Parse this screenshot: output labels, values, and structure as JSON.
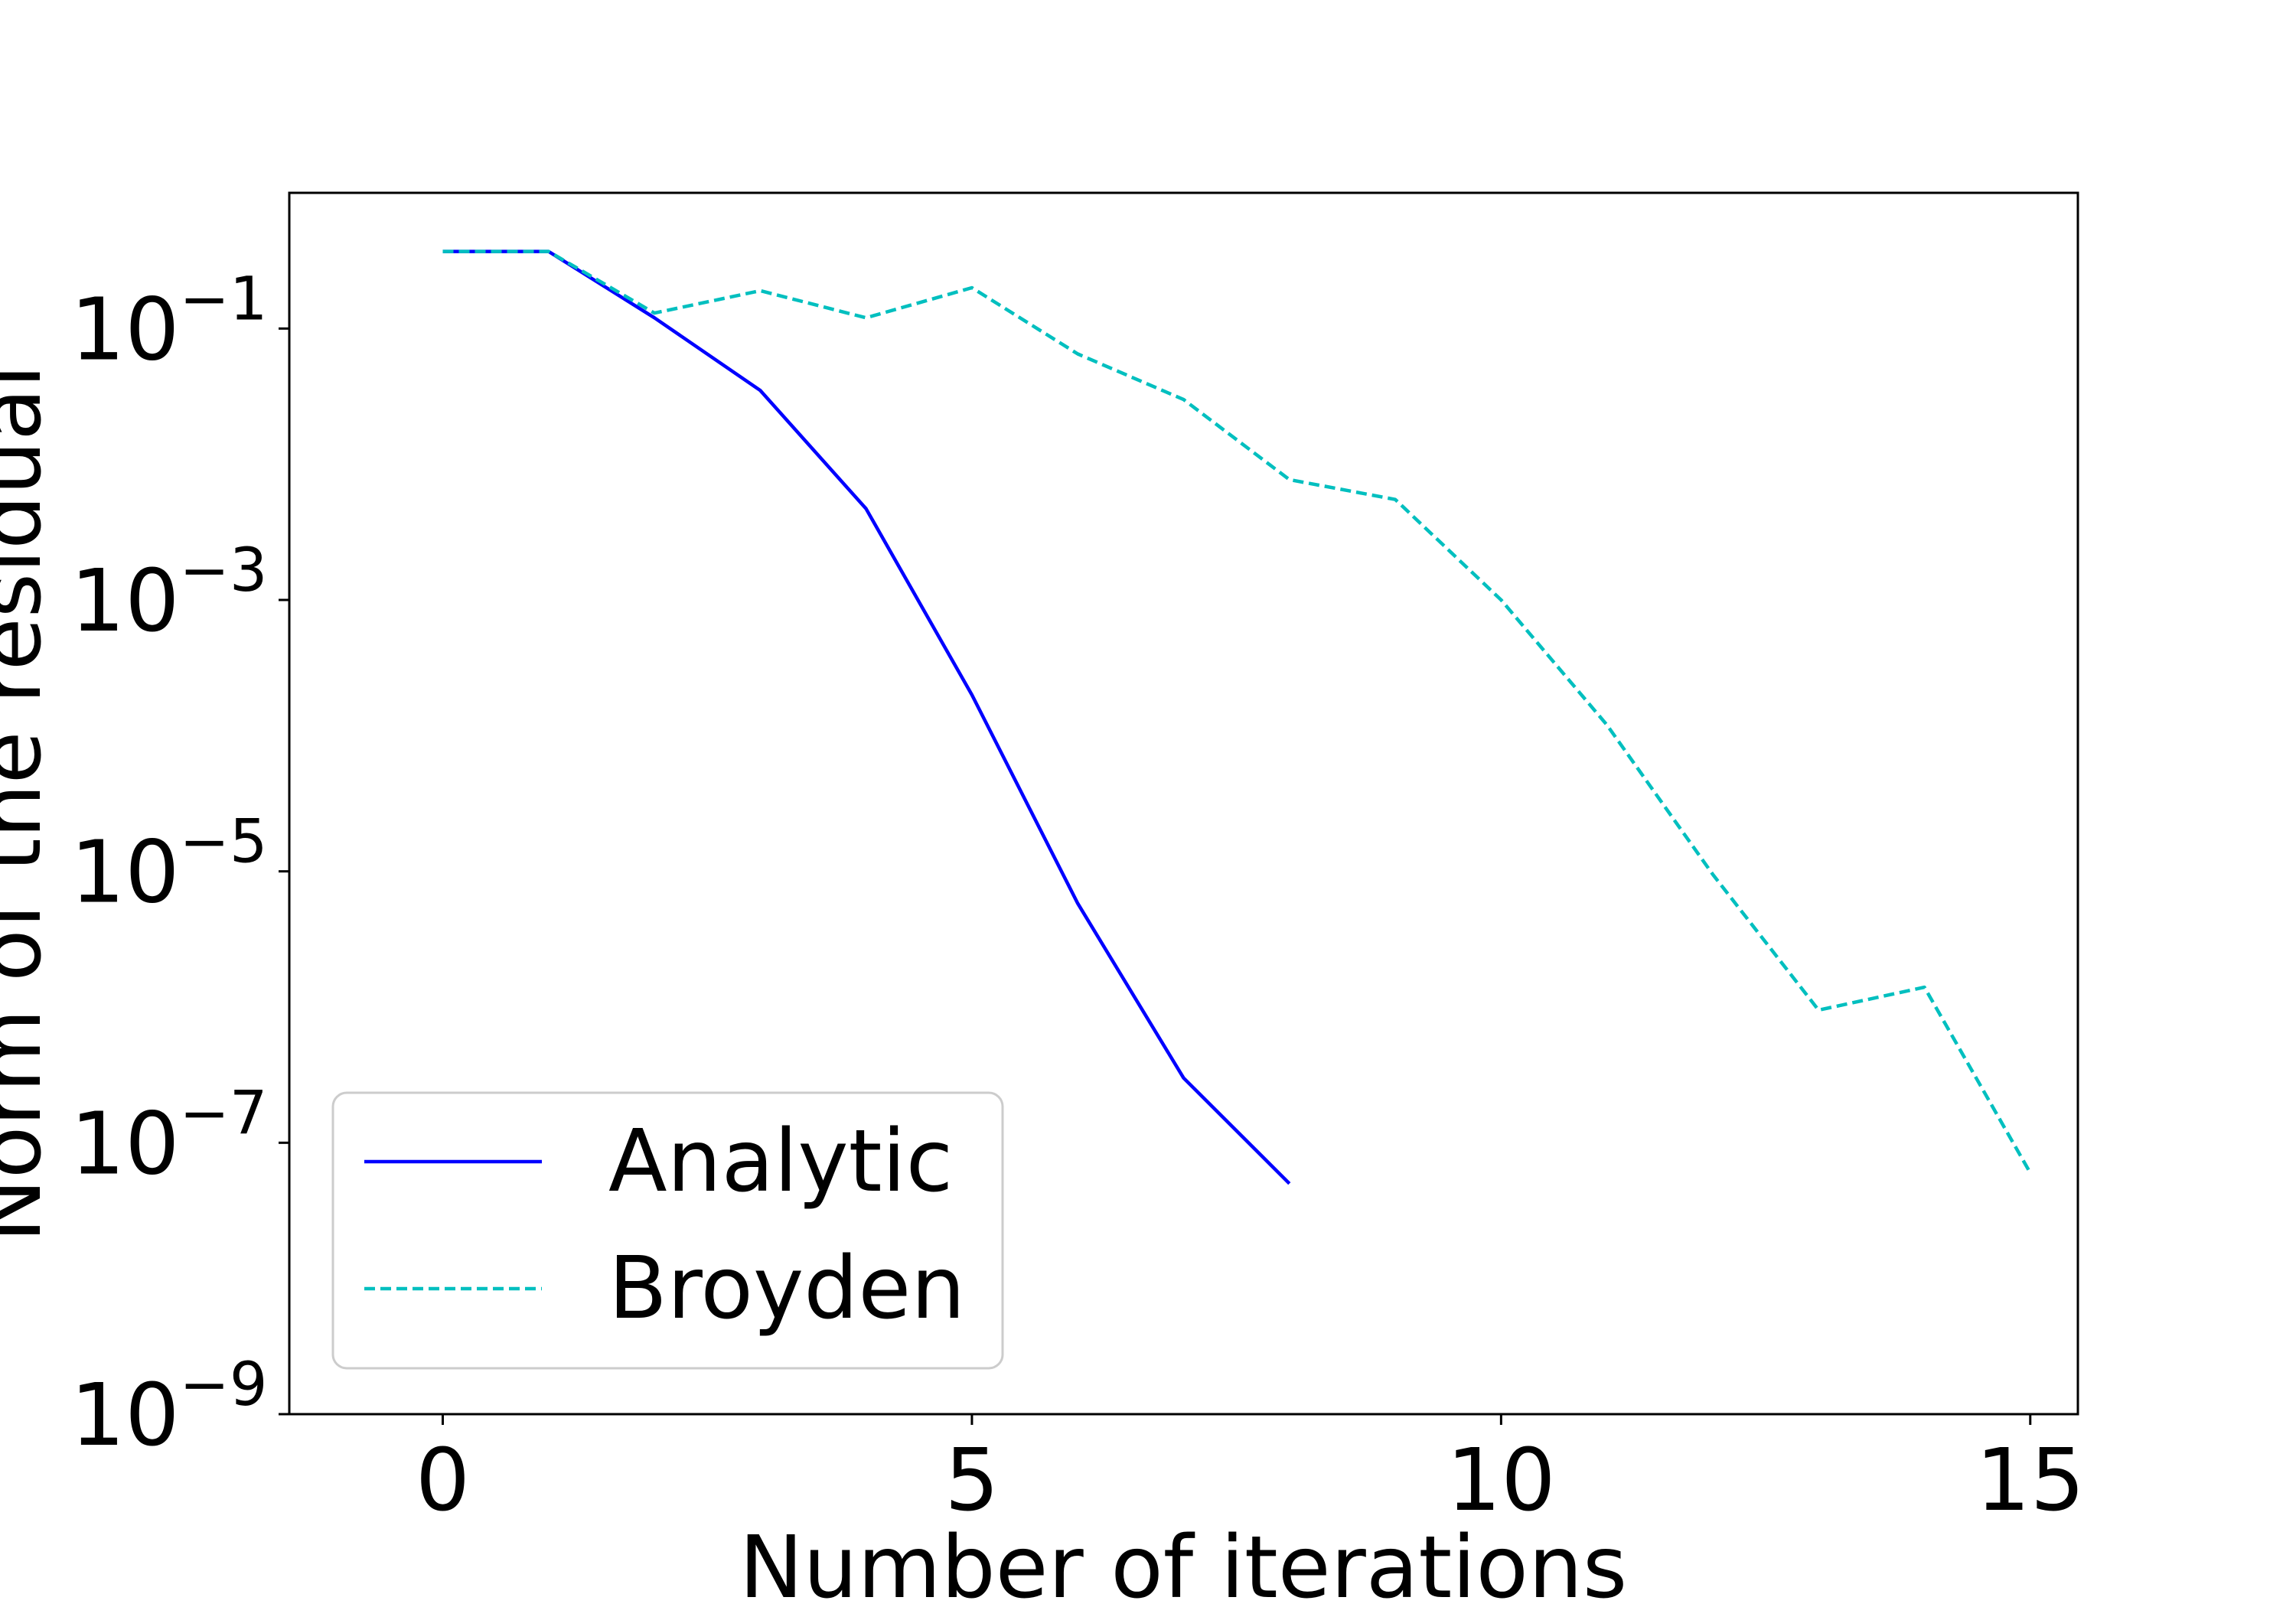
{
  "chart_data": {
    "type": "line",
    "xlabel": "Number of iterations",
    "ylabel": "Norm of the residual",
    "xlim": [
      -1.45,
      15.45
    ],
    "ylim": [
      1e-09,
      1.0
    ],
    "yscale": "log",
    "xticks": [
      {
        "value": 0,
        "label": "0"
      },
      {
        "value": 5,
        "label": "5"
      },
      {
        "value": 10,
        "label": "10"
      },
      {
        "value": 15,
        "label": "15"
      }
    ],
    "yticks": [
      {
        "value": 0.1,
        "base": "10",
        "exp": "−1"
      },
      {
        "value": 0.001,
        "base": "10",
        "exp": "−3"
      },
      {
        "value": 1e-05,
        "base": "10",
        "exp": "−5"
      },
      {
        "value": 1e-07,
        "base": "10",
        "exp": "−7"
      },
      {
        "value": 1e-09,
        "base": "10",
        "exp": "−9"
      }
    ],
    "legend_position": "lower-left",
    "series": [
      {
        "name": "Analytic",
        "color": "#0000ff",
        "style": "solid",
        "x": [
          0,
          1,
          2,
          3,
          4,
          5,
          6,
          7,
          8
        ],
        "y": [
          0.37,
          0.37,
          0.12,
          0.035,
          0.0047,
          0.0002,
          5.8e-06,
          3e-07,
          5e-08
        ]
      },
      {
        "name": "Broyden",
        "color": "#00bfbf",
        "style": "dashed",
        "x": [
          0,
          1,
          2,
          3,
          4,
          5,
          6,
          7,
          8,
          9,
          10,
          11,
          12,
          13,
          14,
          15
        ],
        "y": [
          0.37,
          0.37,
          0.13,
          0.19,
          0.12,
          0.2,
          0.065,
          0.03,
          0.0077,
          0.0055,
          0.001,
          0.00012,
          9.5e-06,
          9.5e-07,
          1.4e-06,
          6e-08
        ]
      }
    ]
  }
}
